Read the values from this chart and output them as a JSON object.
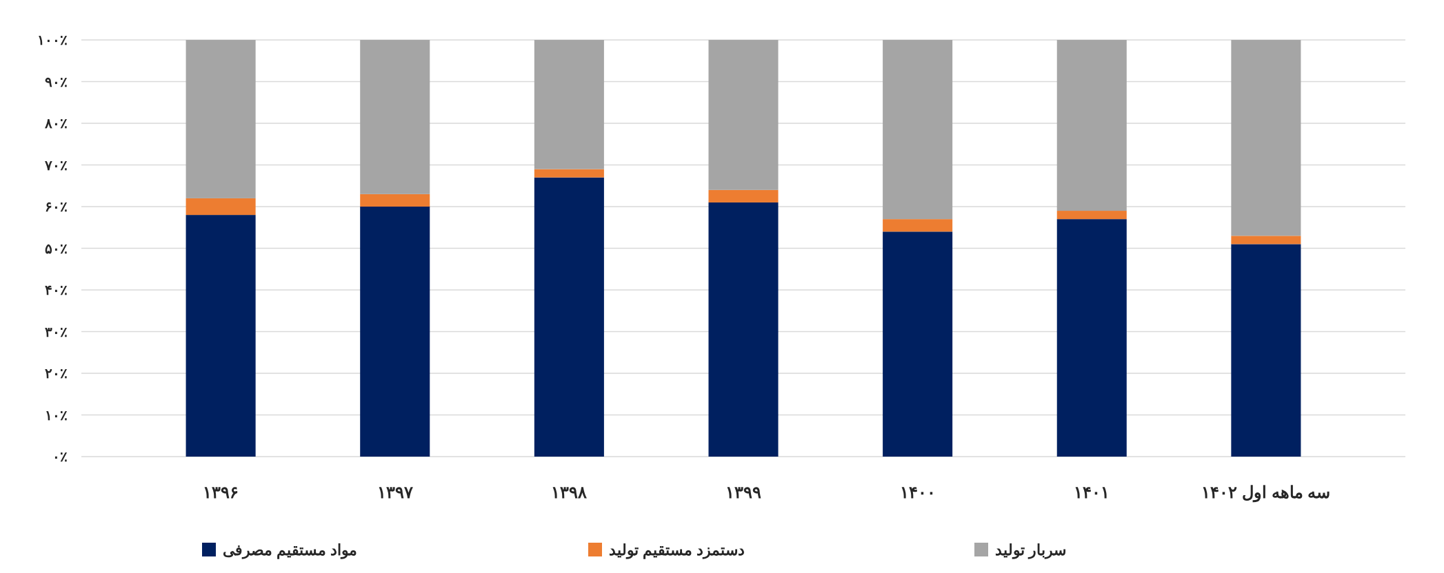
{
  "chart_data": {
    "type": "bar",
    "stacked": true,
    "categories": [
      "۱۳۹۶",
      "۱۳۹۷",
      "۱۳۹۸",
      "۱۳۹۹",
      "۱۴۰۰",
      "۱۴۰۱",
      "سه ماهه اول ۱۴۰۲"
    ],
    "series": [
      {
        "name": "مواد مستقیم مصرفی",
        "color": "#002060",
        "values": [
          58,
          60,
          67,
          61,
          54,
          57,
          51
        ]
      },
      {
        "name": "دستمزد مستقیم تولید",
        "color": "#ed7d31",
        "values": [
          4,
          3,
          2,
          3,
          3,
          2,
          2
        ]
      },
      {
        "name": "سربار تولید",
        "color": "#a5a5a5",
        "values": [
          38,
          37,
          31,
          36,
          43,
          41,
          47
        ]
      }
    ],
    "ylim": [
      0,
      100
    ],
    "yticks": [
      {
        "value": 0,
        "label": "۰٪"
      },
      {
        "value": 10,
        "label": "۱۰٪"
      },
      {
        "value": 20,
        "label": "۲۰٪"
      },
      {
        "value": 30,
        "label": "۳۰٪"
      },
      {
        "value": 40,
        "label": "۴۰٪"
      },
      {
        "value": 50,
        "label": "۵۰٪"
      },
      {
        "value": 60,
        "label": "۶۰٪"
      },
      {
        "value": 70,
        "label": "۷۰٪"
      },
      {
        "value": 80,
        "label": "۸۰٪"
      },
      {
        "value": 90,
        "label": "۹۰٪"
      },
      {
        "value": 100,
        "label": "۱۰۰٪"
      }
    ],
    "grid": "y",
    "legend": "bottom"
  }
}
